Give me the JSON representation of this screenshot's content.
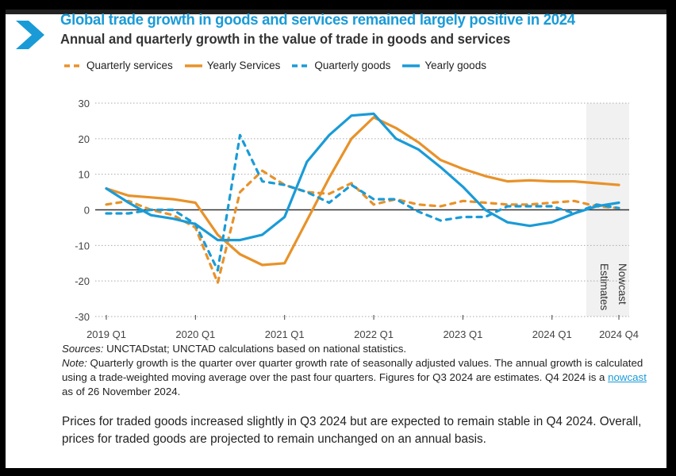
{
  "header": {
    "title": "Global trade growth in goods and services remained largely positive in 2024",
    "subtitle": "Annual and quarterly growth in the value of trade in goods and services",
    "icon": "chevron-right-icon",
    "accent_color": "#1a9bd7"
  },
  "chart_data": {
    "type": "line",
    "title": "Annual and quarterly growth in the value of trade in goods and services",
    "xlabel": "",
    "ylabel": "",
    "ylim": [
      -30,
      30
    ],
    "yticks": [
      30,
      20,
      10,
      0,
      -10,
      -20,
      -30
    ],
    "x": [
      "2019 Q1",
      "2019 Q2",
      "2019 Q3",
      "2019 Q4",
      "2020 Q1",
      "2020 Q2",
      "2020 Q3",
      "2020 Q4",
      "2021 Q1",
      "2021 Q2",
      "2021 Q3",
      "2021 Q4",
      "2022 Q1",
      "2022 Q2",
      "2022 Q3",
      "2022 Q4",
      "2023 Q1",
      "2023 Q2",
      "2023 Q3",
      "2023 Q4",
      "2024 Q1",
      "2024 Q2",
      "2024 Q3",
      "2024 Q4"
    ],
    "xtick_labels": [
      {
        "label": "2019 Q1",
        "index": 0
      },
      {
        "label": "2020 Q1",
        "index": 4
      },
      {
        "label": "2021 Q1",
        "index": 8
      },
      {
        "label": "2022 Q1",
        "index": 12
      },
      {
        "label": "2023 Q1",
        "index": 16
      },
      {
        "label": "2024 Q1",
        "index": 20
      },
      {
        "label": "2024 Q4",
        "index": 23
      }
    ],
    "grid": true,
    "legend_position": "top-left",
    "series": [
      {
        "name": "Quarterly services",
        "style": "dashed",
        "color": "#e8922a",
        "values": [
          1.5,
          2.5,
          0,
          -1.5,
          -5,
          -20.5,
          5,
          11,
          7,
          5,
          4.5,
          7.5,
          1.5,
          3,
          1.5,
          1,
          2.5,
          2,
          1.5,
          1.5,
          2,
          2.5,
          1,
          0.5
        ]
      },
      {
        "name": "Yearly Services",
        "style": "solid",
        "color": "#e8922a",
        "values": [
          6,
          4,
          3.5,
          3,
          2,
          -7,
          -12.5,
          -15.5,
          -15,
          -3,
          9,
          20,
          26,
          23,
          19,
          14,
          11.5,
          9.5,
          8,
          8.3,
          8,
          8,
          7.5,
          7
        ]
      },
      {
        "name": "Quarterly goods",
        "style": "dashed",
        "color": "#1a9bd7",
        "values": [
          -1,
          -1,
          0,
          0,
          -4,
          -17,
          21,
          8,
          7,
          5,
          2,
          7,
          3,
          3,
          -0.5,
          -3,
          -2,
          -2,
          1,
          1,
          1,
          -1,
          1.5,
          0.5
        ]
      },
      {
        "name": "Yearly goods",
        "style": "solid",
        "color": "#1a9bd7",
        "values": [
          6,
          2,
          -1.5,
          -2.5,
          -4,
          -8.5,
          -8.5,
          -7,
          -2,
          13.5,
          21,
          26.5,
          27,
          20,
          17,
          12,
          6.5,
          0,
          -3.5,
          -4.5,
          -3.5,
          -1,
          1,
          2
        ]
      }
    ],
    "annotations": [
      {
        "text": "Estimates",
        "shaded_from_index": 22,
        "shaded_to_index": 23
      },
      {
        "text": "Nowcast",
        "shaded_from_index": 22,
        "shaded_to_index": 23
      }
    ]
  },
  "notes": {
    "sources_label": "Sources:",
    "sources_text": " UNCTADstat; UNCTAD calculations based on national statistics.",
    "note_label": "Note:",
    "note_text": " Quarterly growth is the quarter over quarter growth rate of seasonally adjusted values. The annual growth is calculated using a trade-weighted moving average over the past four quarters. Figures for Q3 2024 are estimates. Q4 2024 is a ",
    "nowcast_link": "nowcast ",
    "note_tail": "as of 26 November 2024."
  },
  "paragraph": "Prices for traded goods increased slightly in Q3 2024 but are expected to remain stable in Q4 2024. Overall, prices for traded goods are projected to remain unchanged on an annual basis."
}
